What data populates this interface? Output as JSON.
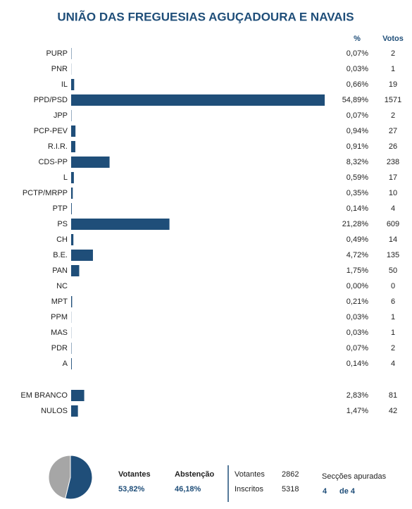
{
  "chart_data": [
    {
      "type": "bar",
      "title": "UNIÃO DAS FREGUESIAS AGUÇADOURA E NAVAIS",
      "value_header": "%",
      "votes_header": "Votos",
      "color": "#1f4e79",
      "categories": [
        "PURP",
        "PNR",
        "IL",
        "PPD/PSD",
        "JPP",
        "PCP-PEV",
        "R.I.R.",
        "CDS-PP",
        "L",
        "PCTP/MRPP",
        "PTP",
        "PS",
        "CH",
        "B.E.",
        "PAN",
        "NC",
        "MPT",
        "PPM",
        "MAS",
        "PDR",
        "A"
      ],
      "values": [
        0.07,
        0.03,
        0.66,
        54.89,
        0.07,
        0.94,
        0.91,
        8.32,
        0.59,
        0.35,
        0.14,
        21.28,
        0.49,
        4.72,
        1.75,
        0.0,
        0.21,
        0.03,
        0.03,
        0.07,
        0.14
      ],
      "value_labels": [
        "0,07%",
        "0,03%",
        "0,66%",
        "54,89%",
        "0,07%",
        "0,94%",
        "0,91%",
        "8,32%",
        "0,59%",
        "0,35%",
        "0,14%",
        "21,28%",
        "0,49%",
        "4,72%",
        "1,75%",
        "0,00%",
        "0,21%",
        "0,03%",
        "0,03%",
        "0,07%",
        "0,14%"
      ],
      "votes": [
        2,
        1,
        19,
        1571,
        2,
        27,
        26,
        238,
        17,
        10,
        4,
        609,
        14,
        135,
        50,
        0,
        6,
        1,
        1,
        2,
        4
      ]
    },
    {
      "type": "bar",
      "color": "#1f4e79",
      "categories": [
        "EM BRANCO",
        "NULOS"
      ],
      "values": [
        2.83,
        1.47
      ],
      "value_labels": [
        "2,83%",
        "1,47%"
      ],
      "votes": [
        81,
        42
      ]
    },
    {
      "type": "pie",
      "categories": [
        "Votantes",
        "Abstenção"
      ],
      "values": [
        53.82,
        46.18
      ],
      "value_labels": [
        "53,82%",
        "46,18%"
      ],
      "colors": [
        "#1f4e79",
        "#a6a6a6"
      ]
    }
  ],
  "summary": {
    "rows": [
      {
        "label": "Votantes",
        "value": 2862
      },
      {
        "label": "Inscritos",
        "value": 5318
      }
    ],
    "sections_label": "Secções apuradas",
    "sections_done": 4,
    "sections_total_label": "de 4"
  }
}
